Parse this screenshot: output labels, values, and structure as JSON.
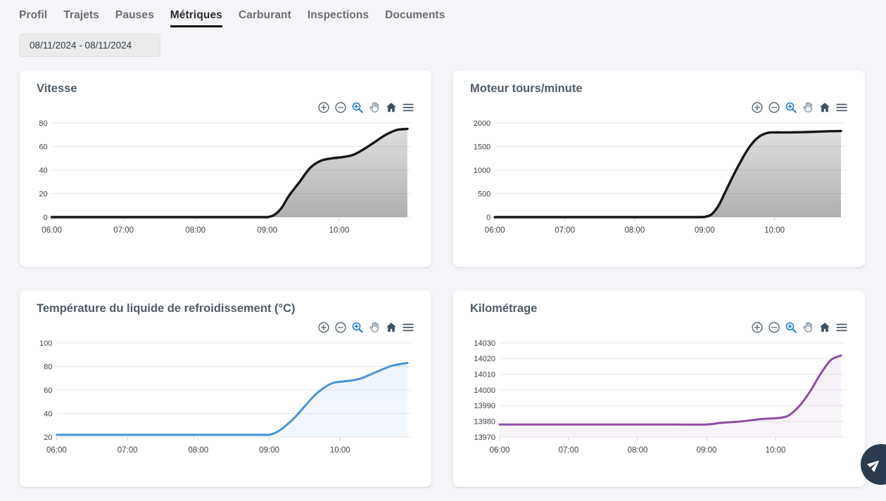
{
  "theme": {
    "page_bg": "#f4f5f8",
    "card_bg": "#ffffff",
    "title_color": "#4f5b66",
    "tab_color": "#6d6d6d",
    "tab_active_color": "#2b2b2b",
    "tab_underline": "#111111",
    "toolbar_icon_color": "#51626f",
    "toolbar_icon_active_color": "#1f7ad4",
    "fab_bg": "#2c3a4d"
  },
  "tabs": {
    "items": [
      {
        "label": "Profil",
        "active": false
      },
      {
        "label": "Trajets",
        "active": false
      },
      {
        "label": "Pauses",
        "active": false
      },
      {
        "label": "Métriques",
        "active": true
      },
      {
        "label": "Carburant",
        "active": false
      },
      {
        "label": "Inspections",
        "active": false
      },
      {
        "label": "Documents",
        "active": false
      }
    ]
  },
  "date_filter": {
    "value": "08/11/2024 - 08/11/2024"
  },
  "toolbar_icons": [
    "zoom-in-icon",
    "zoom-out-icon",
    "box-zoom-icon",
    "pan-hand-icon",
    "home-reset-icon",
    "menu-icon"
  ],
  "fab": {
    "icon": "send-icon"
  },
  "chart_data": [
    {
      "type": "area",
      "title": "Vitesse",
      "xlabel": "",
      "ylabel": "",
      "x_tick_labels": [
        "06:00",
        "07:00",
        "08:00",
        "09:00",
        "10:00"
      ],
      "x_tick_hours": [
        0,
        1,
        2,
        3,
        4
      ],
      "xlim": [
        0,
        5
      ],
      "yticks": [
        0,
        20,
        40,
        60,
        80
      ],
      "ylim": [
        0,
        80
      ],
      "grid": true,
      "legend": "none",
      "x_hours": [
        0,
        0.5,
        1,
        1.5,
        2,
        2.5,
        2.9,
        3.0,
        3.1,
        3.2,
        3.3,
        3.45,
        3.6,
        3.75,
        3.9,
        4.05,
        4.2,
        4.35,
        4.5,
        4.65,
        4.8,
        4.95
      ],
      "values": [
        0,
        0,
        0,
        0,
        0,
        0,
        0,
        0,
        2,
        8,
        18,
        30,
        42,
        48,
        50,
        51,
        53,
        58,
        64,
        70,
        74,
        75
      ],
      "line_color": "#161616",
      "line_width": 3.4,
      "fill_top": "rgba(0,0,0,0.13)",
      "fill_bottom": "rgba(0,0,0,0.31)"
    },
    {
      "type": "area",
      "title": "Moteur tours/minute",
      "xlabel": "",
      "ylabel": "",
      "x_tick_labels": [
        "06:00",
        "07:00",
        "08:00",
        "09:00",
        "10:00"
      ],
      "x_tick_hours": [
        0,
        1,
        2,
        3,
        4
      ],
      "xlim": [
        0,
        5
      ],
      "yticks": [
        0,
        500,
        1000,
        1500,
        2000
      ],
      "ylim": [
        0,
        2000
      ],
      "grid": true,
      "legend": "none",
      "x_hours": [
        0,
        0.5,
        1,
        1.5,
        2,
        2.5,
        2.9,
        3.0,
        3.1,
        3.2,
        3.3,
        3.45,
        3.6,
        3.7,
        3.8,
        3.9,
        4.0,
        4.2,
        4.4,
        4.6,
        4.8,
        4.95
      ],
      "values": [
        0,
        0,
        0,
        0,
        0,
        0,
        0,
        5,
        60,
        250,
        550,
        1000,
        1400,
        1600,
        1730,
        1790,
        1800,
        1800,
        1805,
        1815,
        1825,
        1830
      ],
      "line_color": "#161616",
      "line_width": 3.4,
      "fill_top": "rgba(0,0,0,0.13)",
      "fill_bottom": "rgba(0,0,0,0.31)"
    },
    {
      "type": "area",
      "title": "Température du liquide de refroidissement (°C)",
      "xlabel": "",
      "ylabel": "",
      "x_tick_labels": [
        "06:00",
        "07:00",
        "08:00",
        "09:00",
        "10:00"
      ],
      "x_tick_hours": [
        0,
        1,
        2,
        3,
        4
      ],
      "xlim": [
        0,
        5
      ],
      "yticks": [
        20,
        40,
        60,
        80,
        100
      ],
      "ylim": [
        20,
        100
      ],
      "grid": true,
      "legend": "none",
      "x_hours": [
        0,
        0.5,
        1,
        1.5,
        2,
        2.5,
        2.9,
        3.0,
        3.1,
        3.2,
        3.35,
        3.5,
        3.65,
        3.8,
        3.9,
        4.0,
        4.15,
        4.3,
        4.5,
        4.7,
        4.85,
        4.95
      ],
      "values": [
        22,
        22,
        22,
        22,
        22,
        22,
        22,
        22,
        24,
        28,
        36,
        46,
        56,
        63,
        66,
        67,
        68,
        70,
        75,
        80,
        82,
        83
      ],
      "line_color": "#4a93d4",
      "line_width": 3,
      "fill_top": "rgba(74,147,212,0.10)",
      "fill_bottom": "rgba(74,147,212,0.07)"
    },
    {
      "type": "area",
      "title": "Kilométrage",
      "xlabel": "",
      "ylabel": "",
      "x_tick_labels": [
        "06:00",
        "07:00",
        "08:00",
        "09:00",
        "10:00"
      ],
      "x_tick_hours": [
        0,
        1,
        2,
        3,
        4
      ],
      "xlim": [
        0,
        5
      ],
      "yticks": [
        13970,
        13980,
        13990,
        14000,
        14010,
        14020,
        14030
      ],
      "ylim": [
        13970,
        14030
      ],
      "grid": true,
      "legend": "none",
      "x_hours": [
        0,
        0.5,
        1,
        1.5,
        2,
        2.5,
        3.0,
        3.2,
        3.5,
        3.8,
        4.0,
        4.1,
        4.2,
        4.35,
        4.5,
        4.65,
        4.8,
        4.95
      ],
      "values": [
        13978,
        13978,
        13978,
        13978,
        13978,
        13978,
        13978,
        13979,
        13980,
        13981.5,
        13982,
        13982.5,
        13984,
        13990,
        13999,
        14010,
        14019,
        14022
      ],
      "line_color": "#8d4fa0",
      "line_width": 3,
      "fill_top": "rgba(141,79,160,0.09)",
      "fill_bottom": "rgba(141,79,160,0.06)"
    }
  ]
}
